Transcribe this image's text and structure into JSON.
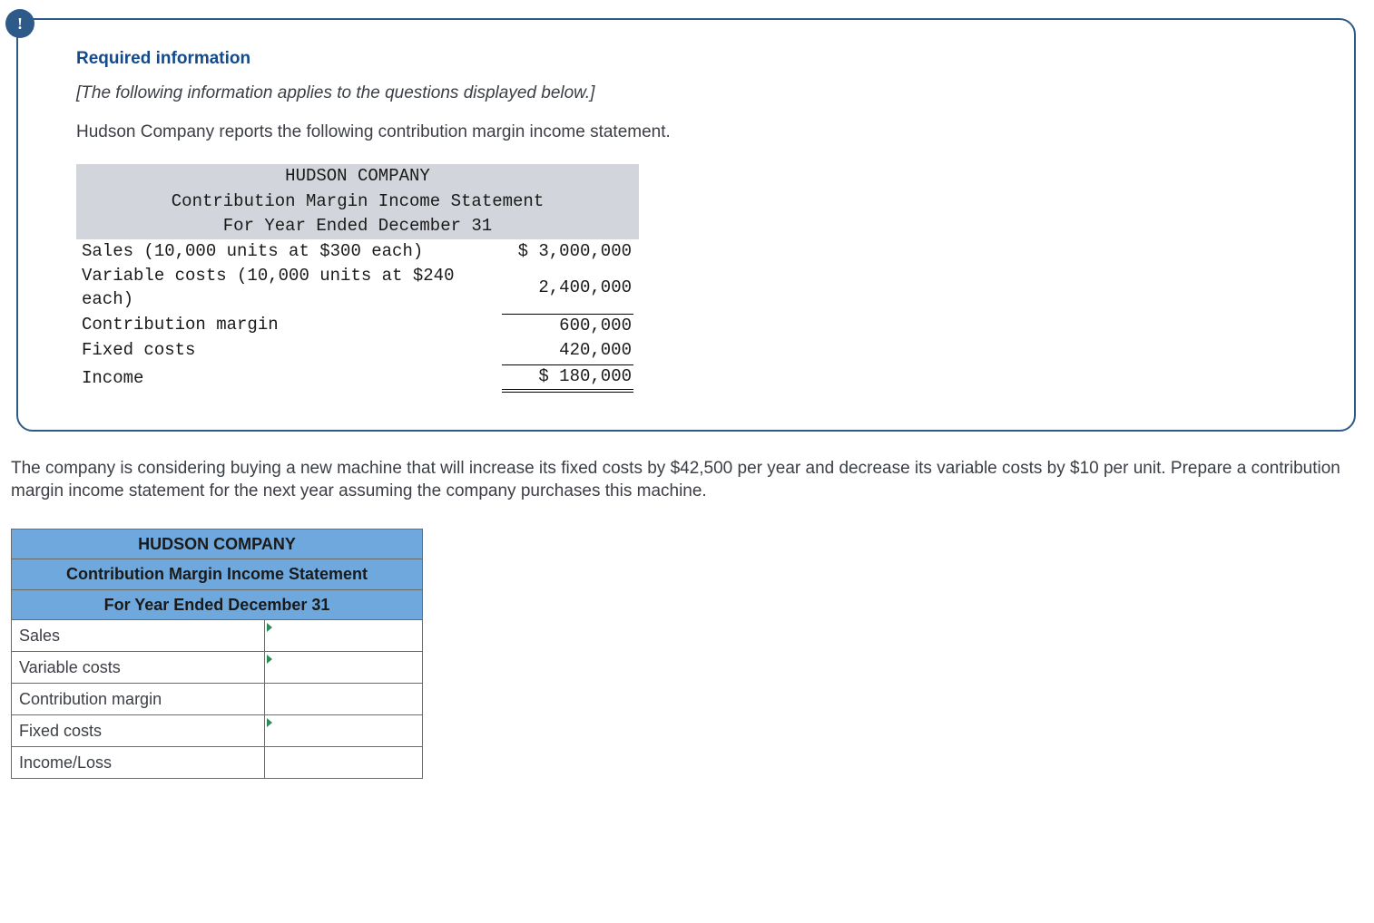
{
  "colors": {
    "box_border": "#2e5a8a",
    "badge_bg": "#2e5a8a",
    "badge_fg": "#ffffff",
    "title_color": "#134a8b",
    "body_text": "#3b3f45",
    "stmt_header_bg": "#d2d5db",
    "input_header_bg": "#6fa8dc",
    "cell_border": "#6b6b6b",
    "triangle": "#2e8b57"
  },
  "badge_char": "!",
  "required_title": "Required information",
  "required_sub": "[The following information applies to the questions displayed below.]",
  "required_desc": "Hudson Company reports the following contribution margin income statement.",
  "statement": {
    "company": "HUDSON COMPANY",
    "title": "Contribution Margin Income Statement",
    "period": "For Year Ended December 31",
    "rows": [
      {
        "label": "Sales (10,000 units at $300 each)",
        "value": "$ 3,000,000"
      },
      {
        "label": "Variable costs (10,000 units at $240 each)",
        "value": "2,400,000"
      },
      {
        "label": "Contribution margin",
        "value": "600,000",
        "top_line": true
      },
      {
        "label": "Fixed costs",
        "value": "420,000"
      },
      {
        "label": "Income",
        "value": "$ 180,000",
        "dbl": true
      }
    ]
  },
  "question": "The company is considering buying a new machine that will increase its fixed costs by $42,500 per year and decrease its variable costs by $10 per unit. Prepare a contribution margin income statement for the next year assuming the company purchases this machine.",
  "input_table": {
    "h1": "HUDSON COMPANY",
    "h2": "Contribution Margin Income Statement",
    "h3": "For Year Ended December 31",
    "rows": [
      {
        "label": "Sales",
        "tri": true
      },
      {
        "label": "Variable costs",
        "tri": true
      },
      {
        "label": "Contribution margin",
        "tri": false
      },
      {
        "label": "Fixed costs",
        "tri": true
      },
      {
        "label": "Income/Loss",
        "tri": false
      }
    ]
  }
}
